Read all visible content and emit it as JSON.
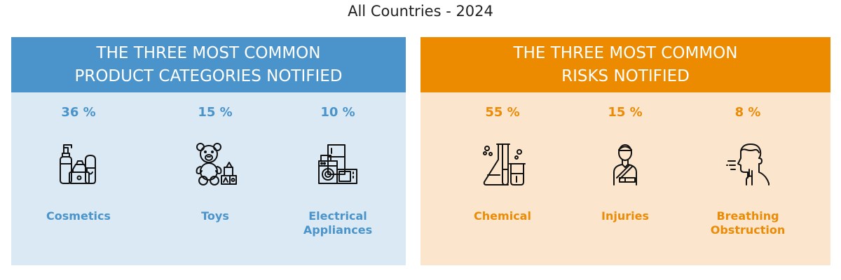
{
  "title": "All Countries - 2024",
  "colors": {
    "blue_header": "#4b94cb",
    "blue_body": "#dbe9f5",
    "blue_text": "#4a94ca",
    "orange_header": "#ec8b00",
    "orange_body": "#fbe5cc",
    "orange_text": "#eb8b06"
  },
  "chart_data": [
    {
      "type": "table",
      "title_lines": [
        "THE THREE MOST COMMON",
        "PRODUCT CATEGORIES NOTIFIED"
      ],
      "categories": [
        "Cosmetics",
        "Toys",
        "Electrical Appliances"
      ],
      "values": [
        36,
        15,
        10
      ],
      "value_labels": [
        "36 %",
        "15 %",
        "10 %"
      ],
      "label_lines": [
        [
          "Cosmetics"
        ],
        [
          "Toys"
        ],
        [
          "Electrical",
          "Appliances"
        ]
      ],
      "icons": [
        "cosmetics-icon",
        "teddy-bear-icon",
        "appliances-icon"
      ]
    },
    {
      "type": "table",
      "title_lines": [
        "THE THREE MOST COMMON",
        "RISKS NOTIFIED"
      ],
      "categories": [
        "Chemical",
        "Injuries",
        "Breathing Obstruction"
      ],
      "values": [
        55,
        15,
        8
      ],
      "value_labels": [
        "55 %",
        "15 %",
        "8 %"
      ],
      "label_lines": [
        [
          "Chemical"
        ],
        [
          "Injuries"
        ],
        [
          "Breathing",
          "Obstruction"
        ]
      ],
      "icons": [
        "chemical-flask-icon",
        "injured-person-icon",
        "breathing-obstruction-icon"
      ]
    }
  ]
}
